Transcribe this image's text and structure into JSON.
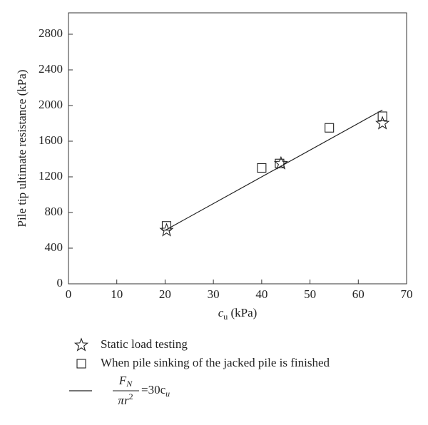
{
  "chart_data": {
    "type": "scatter",
    "x_label": {
      "main": "c",
      "sub": "u",
      "unit": " (kPa)"
    },
    "y_label": "Pile tip ultimate resistance (kPa)",
    "xlim": [
      0,
      70
    ],
    "xticks": [
      0,
      10,
      20,
      30,
      40,
      50,
      60,
      70
    ],
    "ylim": [
      0,
      3040
    ],
    "yticks": [
      0,
      400,
      800,
      1200,
      1600,
      2000,
      2400,
      2800
    ],
    "series": [
      {
        "name": "Static load testing",
        "marker": "star",
        "color": "#222222",
        "x": [
          20.3,
          44,
          65
        ],
        "values": [
          600,
          1350,
          1800
        ]
      },
      {
        "name": "When pile sinking of the jacked pile is finished",
        "marker": "square",
        "color": "#222222",
        "x": [
          20.3,
          40,
          43.7,
          54,
          65
        ],
        "values": [
          650,
          1300,
          1350,
          1750,
          1880
        ]
      },
      {
        "marker": "line",
        "color": "#222222",
        "x": [
          20,
          65
        ],
        "values": [
          600,
          1950
        ]
      }
    ],
    "formula": {
      "numerator": "F",
      "numerator_sub": "N",
      "denominator": "πr",
      "denominator_sup": "2",
      "rhs": "=30c",
      "rhs_sub": "u"
    }
  }
}
